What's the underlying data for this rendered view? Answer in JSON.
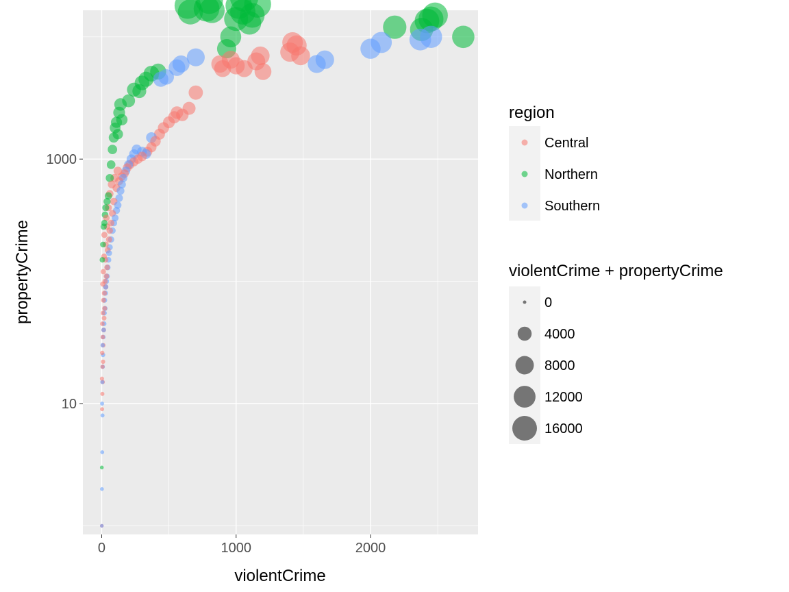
{
  "chart_data": {
    "type": "scatter",
    "xlabel": "violentCrime",
    "ylabel": "propertyCrime",
    "x_ticks": [
      0,
      1000,
      2000
    ],
    "y_scale": "log10",
    "y_ticks": [
      10,
      1000
    ],
    "xlim": [
      -140,
      2800
    ],
    "ylim": [
      0.85,
      16500
    ],
    "grid": true,
    "colors": {
      "Central": "#F8766D",
      "Northern": "#00BA38",
      "Southern": "#619CFF",
      "panel": "#EBEBEB",
      "size_legend_point": "#404040"
    },
    "color_legend": {
      "title": "region",
      "entries": [
        "Central",
        "Northern",
        "Southern"
      ]
    },
    "size_legend": {
      "title": "violentCrime + propertyCrime",
      "breaks": [
        0,
        4000,
        8000,
        12000,
        16000
      ]
    },
    "series": [
      {
        "name": "Central",
        "points": [
          [
            1,
            1
          ],
          [
            3,
            9
          ],
          [
            5,
            12
          ],
          [
            8,
            15
          ],
          [
            2,
            16
          ],
          [
            6,
            20
          ],
          [
            10,
            22
          ],
          [
            4,
            26
          ],
          [
            12,
            30
          ],
          [
            8,
            35
          ],
          [
            15,
            40
          ],
          [
            5,
            45
          ],
          [
            18,
            50
          ],
          [
            10,
            55
          ],
          [
            22,
            60
          ],
          [
            14,
            70
          ],
          [
            20,
            80
          ],
          [
            30,
            90
          ],
          [
            8,
            95
          ],
          [
            25,
            100
          ],
          [
            35,
            110
          ],
          [
            12,
            120
          ],
          [
            40,
            130
          ],
          [
            28,
            150
          ],
          [
            18,
            160
          ],
          [
            45,
            180
          ],
          [
            30,
            200
          ],
          [
            55,
            220
          ],
          [
            20,
            240
          ],
          [
            60,
            260
          ],
          [
            40,
            280
          ],
          [
            70,
            300
          ],
          [
            35,
            330
          ],
          [
            80,
            360
          ],
          [
            50,
            400
          ],
          [
            90,
            450
          ],
          [
            60,
            520
          ],
          [
            110,
            580
          ],
          [
            75,
            620
          ],
          [
            130,
            660
          ],
          [
            95,
            700
          ],
          [
            150,
            720
          ],
          [
            170,
            760
          ],
          [
            120,
            800
          ],
          [
            190,
            850
          ],
          [
            210,
            900
          ],
          [
            240,
            950
          ],
          [
            270,
            1000
          ],
          [
            300,
            1050
          ],
          [
            340,
            1150
          ],
          [
            370,
            1250
          ],
          [
            400,
            1400
          ],
          [
            430,
            1600
          ],
          [
            460,
            1800
          ],
          [
            500,
            2000
          ],
          [
            540,
            2200
          ],
          [
            560,
            2400
          ],
          [
            600,
            2300
          ],
          [
            650,
            2600
          ],
          [
            700,
            3500
          ],
          [
            880,
            6000
          ],
          [
            900,
            5500
          ],
          [
            960,
            6500
          ],
          [
            1000,
            5800
          ],
          [
            1060,
            5500
          ],
          [
            1150,
            6300
          ],
          [
            1200,
            5200
          ],
          [
            1180,
            7000
          ],
          [
            1400,
            7500
          ],
          [
            1450,
            8500
          ],
          [
            1480,
            7000
          ],
          [
            1420,
            9000
          ]
        ]
      },
      {
        "name": "Northern",
        "points": [
          [
            1,
            3
          ],
          [
            5,
            150
          ],
          [
            10,
            200
          ],
          [
            15,
            280
          ],
          [
            20,
            300
          ],
          [
            25,
            350
          ],
          [
            30,
            400
          ],
          [
            40,
            450
          ],
          [
            50,
            500
          ],
          [
            60,
            700
          ],
          [
            70,
            900
          ],
          [
            80,
            1200
          ],
          [
            90,
            1500
          ],
          [
            100,
            1800
          ],
          [
            110,
            2000
          ],
          [
            120,
            1600
          ],
          [
            130,
            2400
          ],
          [
            140,
            2800
          ],
          [
            150,
            2100
          ],
          [
            200,
            3000
          ],
          [
            240,
            3700
          ],
          [
            280,
            3600
          ],
          [
            300,
            4200
          ],
          [
            330,
            4500
          ],
          [
            370,
            5000
          ],
          [
            420,
            5200
          ],
          [
            640,
            18000
          ],
          [
            660,
            16000
          ],
          [
            780,
            17000
          ],
          [
            800,
            20000
          ],
          [
            820,
            16500
          ],
          [
            930,
            8000
          ],
          [
            960,
            10000
          ],
          [
            1000,
            14000
          ],
          [
            1020,
            18000
          ],
          [
            1050,
            16000
          ],
          [
            1060,
            21000
          ],
          [
            1100,
            13000
          ],
          [
            1120,
            15000
          ],
          [
            1160,
            18500
          ],
          [
            2180,
            12000
          ],
          [
            2380,
            11500
          ],
          [
            2420,
            13500
          ],
          [
            2450,
            14000
          ],
          [
            2480,
            15000
          ],
          [
            2690,
            10000
          ]
        ]
      },
      {
        "name": "Southern",
        "points": [
          [
            1,
            1
          ],
          [
            2,
            2
          ],
          [
            4,
            4
          ],
          [
            6,
            8
          ],
          [
            3,
            10
          ],
          [
            5,
            15
          ],
          [
            8,
            20
          ],
          [
            10,
            25
          ],
          [
            7,
            30
          ],
          [
            12,
            35
          ],
          [
            15,
            40
          ],
          [
            18,
            45
          ],
          [
            20,
            55
          ],
          [
            25,
            60
          ],
          [
            22,
            70
          ],
          [
            28,
            80
          ],
          [
            30,
            90
          ],
          [
            35,
            100
          ],
          [
            40,
            110
          ],
          [
            45,
            130
          ],
          [
            50,
            150
          ],
          [
            55,
            170
          ],
          [
            60,
            190
          ],
          [
            70,
            220
          ],
          [
            80,
            260
          ],
          [
            90,
            300
          ],
          [
            100,
            330
          ],
          [
            110,
            380
          ],
          [
            120,
            420
          ],
          [
            130,
            480
          ],
          [
            140,
            550
          ],
          [
            150,
            620
          ],
          [
            160,
            700
          ],
          [
            180,
            800
          ],
          [
            200,
            900
          ],
          [
            220,
            1000
          ],
          [
            240,
            1100
          ],
          [
            260,
            1200
          ],
          [
            300,
            1150
          ],
          [
            330,
            1100
          ],
          [
            370,
            1500
          ],
          [
            440,
            4500
          ],
          [
            480,
            4700
          ],
          [
            560,
            5600
          ],
          [
            590,
            6000
          ],
          [
            700,
            6800
          ],
          [
            1600,
            6000
          ],
          [
            1660,
            6500
          ],
          [
            2000,
            8000
          ],
          [
            2080,
            9000
          ],
          [
            2370,
            9500
          ],
          [
            2450,
            10000
          ]
        ]
      }
    ]
  }
}
